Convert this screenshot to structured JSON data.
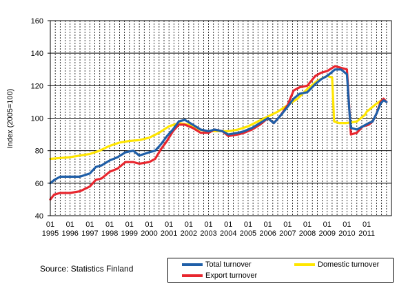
{
  "chart_data": {
    "type": "line",
    "ylabel": "Index (2005=100)",
    "ylim": [
      40,
      160
    ],
    "yticks": [
      40,
      60,
      80,
      100,
      120,
      140,
      160
    ],
    "xlim": [
      1995.0,
      2012.25
    ],
    "grid": true,
    "x_tick_labels": [
      {
        "month": "01",
        "year": "1995"
      },
      {
        "month": "01",
        "year": "1996"
      },
      {
        "month": "01",
        "year": "1997"
      },
      {
        "month": "01",
        "year": "1998"
      },
      {
        "month": "01",
        "year": "1999"
      },
      {
        "month": "01",
        "year": "2000"
      },
      {
        "month": "01",
        "year": "2001"
      },
      {
        "month": "01",
        "year": "2002"
      },
      {
        "month": "01",
        "year": "2003"
      },
      {
        "month": "01",
        "year": "2004"
      },
      {
        "month": "01",
        "year": "2005"
      },
      {
        "month": "01",
        "year": "2006"
      },
      {
        "month": "01",
        "year": "2007"
      },
      {
        "month": "01",
        "year": "2008"
      },
      {
        "month": "01",
        "year": "2009"
      },
      {
        "month": "01",
        "year": "2010"
      },
      {
        "month": "01",
        "year": "2011"
      }
    ],
    "legend_placement": "bottom-right",
    "series": [
      {
        "name": "Domestic turnover",
        "color": "#ffe600",
        "points": [
          [
            1995.0,
            75
          ],
          [
            1995.5,
            75.5
          ],
          [
            1996.0,
            76
          ],
          [
            1996.5,
            77
          ],
          [
            1997.0,
            78
          ],
          [
            1997.5,
            80
          ],
          [
            1998.0,
            83
          ],
          [
            1998.5,
            85
          ],
          [
            1999.0,
            86
          ],
          [
            1999.5,
            86.5
          ],
          [
            2000.0,
            88
          ],
          [
            2000.5,
            91
          ],
          [
            2001.0,
            95
          ],
          [
            2001.5,
            97
          ],
          [
            2002.0,
            96
          ],
          [
            2002.5,
            93
          ],
          [
            2003.0,
            92
          ],
          [
            2003.5,
            92
          ],
          [
            2004.0,
            92
          ],
          [
            2004.5,
            93
          ],
          [
            2005.0,
            95
          ],
          [
            2005.5,
            98
          ],
          [
            2006.0,
            101
          ],
          [
            2006.5,
            104
          ],
          [
            2007.0,
            108
          ],
          [
            2007.5,
            112
          ],
          [
            2008.0,
            118
          ],
          [
            2008.5,
            123
          ],
          [
            2009.0,
            126
          ],
          [
            2009.25,
            125
          ],
          [
            2009.35,
            98
          ],
          [
            2009.6,
            97
          ],
          [
            2010.0,
            97
          ],
          [
            2010.5,
            98
          ],
          [
            2010.9,
            102
          ],
          [
            2011.0,
            104
          ],
          [
            2011.5,
            109
          ],
          [
            2011.75,
            111
          ]
        ]
      },
      {
        "name": "Export turnover",
        "color": "#e8262e",
        "points": [
          [
            1995.0,
            50
          ],
          [
            1995.2,
            53
          ],
          [
            1995.5,
            54
          ],
          [
            1996.0,
            54
          ],
          [
            1996.5,
            55
          ],
          [
            1997.0,
            58
          ],
          [
            1997.3,
            62
          ],
          [
            1997.6,
            63
          ],
          [
            1998.0,
            67
          ],
          [
            1998.4,
            69
          ],
          [
            1998.8,
            73
          ],
          [
            1999.2,
            73
          ],
          [
            1999.5,
            72
          ],
          [
            2000.0,
            73
          ],
          [
            2000.3,
            75
          ],
          [
            2000.6,
            81
          ],
          [
            2000.9,
            86
          ],
          [
            2001.2,
            92
          ],
          [
            2001.5,
            96
          ],
          [
            2001.8,
            96
          ],
          [
            2002.2,
            94
          ],
          [
            2002.6,
            91
          ],
          [
            2003.0,
            91
          ],
          [
            2003.3,
            93
          ],
          [
            2003.7,
            92
          ],
          [
            2004.0,
            89
          ],
          [
            2004.5,
            90
          ],
          [
            2004.8,
            91
          ],
          [
            2005.2,
            93
          ],
          [
            2005.6,
            96
          ],
          [
            2006.0,
            100
          ],
          [
            2006.3,
            97
          ],
          [
            2006.6,
            101
          ],
          [
            2007.0,
            108
          ],
          [
            2007.3,
            117
          ],
          [
            2007.6,
            119
          ],
          [
            2008.0,
            120
          ],
          [
            2008.4,
            126
          ],
          [
            2008.7,
            128
          ],
          [
            2009.0,
            129
          ],
          [
            2009.4,
            132
          ],
          [
            2009.7,
            131
          ],
          [
            2010.0,
            130
          ],
          [
            2010.15,
            100
          ],
          [
            2010.2,
            90
          ],
          [
            2010.5,
            91
          ],
          [
            2010.8,
            95
          ],
          [
            2011.1,
            96
          ],
          [
            2011.3,
            98
          ],
          [
            2011.5,
            103
          ],
          [
            2011.7,
            110
          ],
          [
            2011.85,
            112
          ],
          [
            2012.0,
            110
          ]
        ]
      },
      {
        "name": "Total turnover",
        "color": "#1f5fa8",
        "points": [
          [
            1995.0,
            60
          ],
          [
            1995.2,
            62
          ],
          [
            1995.5,
            64
          ],
          [
            1996.0,
            64
          ],
          [
            1996.5,
            64
          ],
          [
            1997.0,
            66
          ],
          [
            1997.3,
            70
          ],
          [
            1997.6,
            71
          ],
          [
            1998.0,
            74
          ],
          [
            1998.4,
            76
          ],
          [
            1998.8,
            79
          ],
          [
            1999.2,
            80
          ],
          [
            1999.5,
            77
          ],
          [
            2000.0,
            79
          ],
          [
            2000.3,
            80
          ],
          [
            2000.6,
            84
          ],
          [
            2000.9,
            89
          ],
          [
            2001.2,
            93
          ],
          [
            2001.5,
            98
          ],
          [
            2001.8,
            99
          ],
          [
            2002.2,
            96
          ],
          [
            2002.6,
            93
          ],
          [
            2003.0,
            92
          ],
          [
            2003.3,
            93
          ],
          [
            2003.7,
            92
          ],
          [
            2004.0,
            90
          ],
          [
            2004.5,
            91
          ],
          [
            2004.8,
            92
          ],
          [
            2005.2,
            94
          ],
          [
            2005.6,
            97
          ],
          [
            2006.0,
            100
          ],
          [
            2006.3,
            97
          ],
          [
            2006.6,
            101
          ],
          [
            2007.0,
            107
          ],
          [
            2007.3,
            112
          ],
          [
            2007.6,
            115
          ],
          [
            2008.0,
            116
          ],
          [
            2008.4,
            121
          ],
          [
            2008.7,
            124
          ],
          [
            2009.0,
            126
          ],
          [
            2009.4,
            130
          ],
          [
            2009.7,
            130
          ],
          [
            2010.0,
            127
          ],
          [
            2010.15,
            100
          ],
          [
            2010.2,
            94
          ],
          [
            2010.5,
            93
          ],
          [
            2010.8,
            95
          ],
          [
            2011.1,
            97
          ],
          [
            2011.3,
            98
          ],
          [
            2011.5,
            103
          ],
          [
            2011.7,
            109
          ],
          [
            2011.85,
            111
          ],
          [
            2012.0,
            110
          ]
        ]
      }
    ]
  },
  "source_text": "Source: Statistics Finland"
}
